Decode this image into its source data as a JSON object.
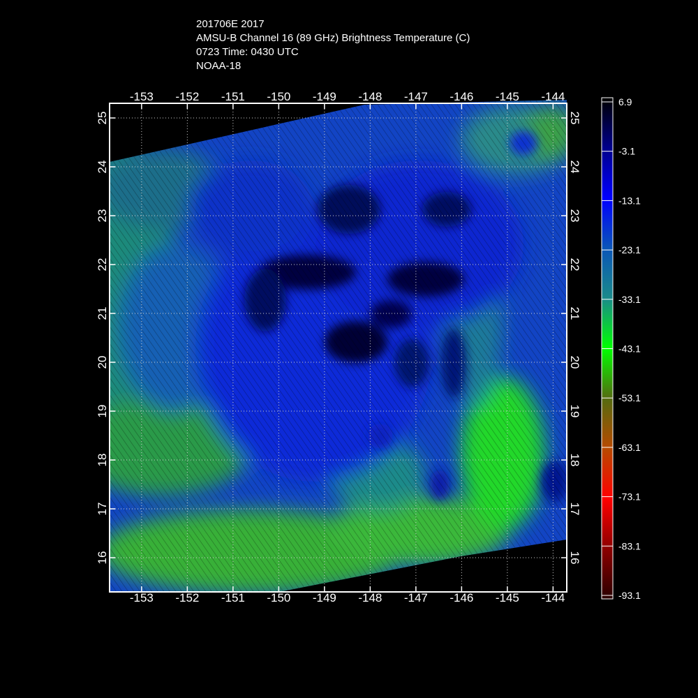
{
  "header": {
    "line1": "201706E 2017",
    "line2": "AMSU-B Channel 16 (89 GHz) Brightness Temperature (C)",
    "line3": "0723 Time: 0430 UTC",
    "line4": "NOAA-18"
  },
  "map": {
    "lon_ticks": [
      "-153",
      "-152",
      "-151",
      "-150",
      "-149",
      "-148",
      "-147",
      "-146",
      "-145",
      "-144"
    ],
    "lat_ticks": [
      "25",
      "24",
      "23",
      "22",
      "21",
      "20",
      "19",
      "18",
      "17",
      "16"
    ],
    "grid": true,
    "lon_range": [
      -153.7,
      -143.7
    ],
    "lat_range": [
      15.3,
      25.3
    ]
  },
  "colorbar": {
    "labels": [
      "6.9",
      "-3.1",
      "-13.1",
      "-23.1",
      "-33.1",
      "-43.1",
      "-53.1",
      "-63.1",
      "-73.1",
      "-83.1",
      "-93.1"
    ],
    "stops": [
      "#000000",
      "#00008a",
      "#0000ff",
      "#0a55b8",
      "#1a8a8a",
      "#00ff00",
      "#556b10",
      "#b84a00",
      "#ff0000",
      "#8b0000",
      "#2a0000"
    ]
  }
}
